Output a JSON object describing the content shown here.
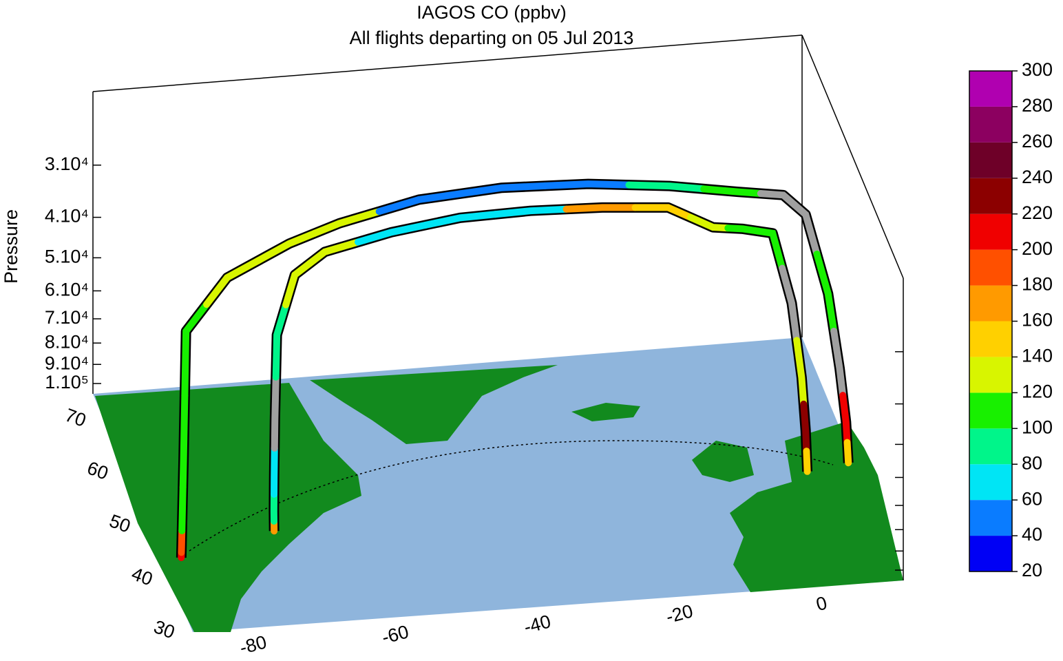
{
  "chart_data": {
    "type": "trajectory3d",
    "title": "IAGOS CO (ppbv)",
    "subtitle": "All flights departing on 05 Jul 2013",
    "zlabel": "Pressure",
    "zscale": "log",
    "zlim": [
      100000,
      20000
    ],
    "zticks": [
      {
        "value": 30000,
        "label": "3.10⁴"
      },
      {
        "value": 40000,
        "label": "4.10⁴"
      },
      {
        "value": 50000,
        "label": "5.10⁴"
      },
      {
        "value": 60000,
        "label": "6.10⁴"
      },
      {
        "value": 70000,
        "label": "7.10⁴"
      },
      {
        "value": 80000,
        "label": "8.10⁴"
      },
      {
        "value": 90000,
        "label": "9.10⁴"
      },
      {
        "value": 100000,
        "label": "1.10⁵"
      }
    ],
    "xlim": [
      -90,
      10
    ],
    "xticks": [
      -80,
      -60,
      -40,
      -20,
      0
    ],
    "ylim": [
      30,
      75
    ],
    "yticks": [
      30,
      40,
      50,
      60,
      70
    ],
    "null_color": "#a0a0a0",
    "colorbar": {
      "ticks": [
        20,
        40,
        60,
        80,
        100,
        120,
        140,
        160,
        180,
        200,
        220,
        240,
        260,
        280,
        300
      ],
      "colors": [
        "#0000f5",
        "#0a7cff",
        "#00e5f5",
        "#00f58a",
        "#18f000",
        "#d8f500",
        "#ffd000",
        "#ff9a00",
        "#ff5000",
        "#f00000",
        "#8c0000",
        "#6e0028",
        "#8c0060",
        "#b000b0"
      ]
    },
    "flights": [
      {
        "lon": [
          -87.9,
          -87.8,
          -87.6,
          -87.3,
          -86.8,
          -80,
          -70,
          -62,
          -50,
          -38,
          -26,
          -15,
          -6,
          0,
          3,
          6,
          7.5,
          8.3,
          8.6
        ],
        "lat": [
          41.9,
          42.1,
          42.4,
          42.8,
          43.3,
          46.5,
          50.5,
          53.5,
          56,
          57,
          56.5,
          55,
          53,
          51.8,
          51.3,
          50.8,
          50.4,
          50.1,
          50
        ],
        "pressure": [
          100000,
          95000,
          80000,
          60000,
          30000,
          25000,
          24000,
          24000,
          23500,
          23500,
          23500,
          23500,
          23500,
          23500,
          26000,
          40000,
          60000,
          80000,
          100000
        ],
        "co": [
          210,
          190,
          105,
          100,
          110,
          125,
          130,
          120,
          45,
          45,
          50,
          90,
          105,
          null,
          null,
          100,
          null,
          215,
          140
        ]
      },
      {
        "lon": [
          -73.7,
          -73.7,
          -73.6,
          -73.4,
          -73.0,
          -70,
          -65,
          -55,
          -45,
          -35,
          -25,
          -16,
          -10,
          -6,
          -2,
          0.5,
          1.8,
          2.3,
          2.5
        ],
        "lat": [
          45.5,
          45.6,
          45.8,
          46.1,
          46.5,
          48,
          50.5,
          52.5,
          53.5,
          53.8,
          53.4,
          52.5,
          51.5,
          50.8,
          50.2,
          49.6,
          49.3,
          49.1,
          49
        ],
        "pressure": [
          100000,
          90000,
          75000,
          55000,
          35000,
          26500,
          25500,
          25000,
          24500,
          24500,
          24500,
          24500,
          27000,
          27000,
          27500,
          40000,
          60000,
          80000,
          100000
        ],
        "co": [
          165,
          95,
          75,
          null,
          85,
          120,
          130,
          75,
          65,
          70,
          170,
          140,
          120,
          105,
          115,
          null,
          130,
          235,
          150
        ]
      }
    ]
  }
}
